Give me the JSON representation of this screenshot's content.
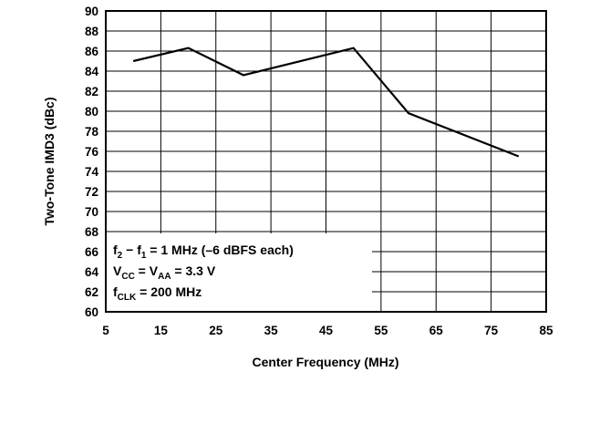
{
  "chart_data": {
    "type": "line",
    "xlabel": "Center Frequency (MHz)",
    "ylabel": "Two-Tone IMD3 (dBc)",
    "xlim": [
      5,
      85
    ],
    "ylim": [
      60,
      90
    ],
    "x_ticks": [
      "5",
      "15",
      "25",
      "35",
      "45",
      "55",
      "65",
      "75",
      "85"
    ],
    "y_ticks": [
      "60",
      "62",
      "64",
      "66",
      "68",
      "70",
      "72",
      "74",
      "76",
      "78",
      "80",
      "82",
      "84",
      "86",
      "88",
      "90"
    ],
    "grid": true,
    "series": [
      {
        "x": [
          10,
          20,
          30,
          50,
          60,
          80
        ],
        "y": [
          85.0,
          86.3,
          83.6,
          86.3,
          79.8,
          75.5
        ]
      }
    ],
    "annotations": {
      "line1": {
        "a": "f",
        "a_sub": "2",
        "mid": " − f",
        "b_sub": "1",
        "rest": " = 1 MHz (–6 dBFS each)"
      },
      "line2": {
        "a": "V",
        "a_sub": "CC",
        "mid": " = V",
        "b_sub": "AA",
        "rest": " = 3.3 V"
      },
      "line3": {
        "a": "f",
        "a_sub": "CLK",
        "rest": " = 200 MHz"
      }
    }
  }
}
